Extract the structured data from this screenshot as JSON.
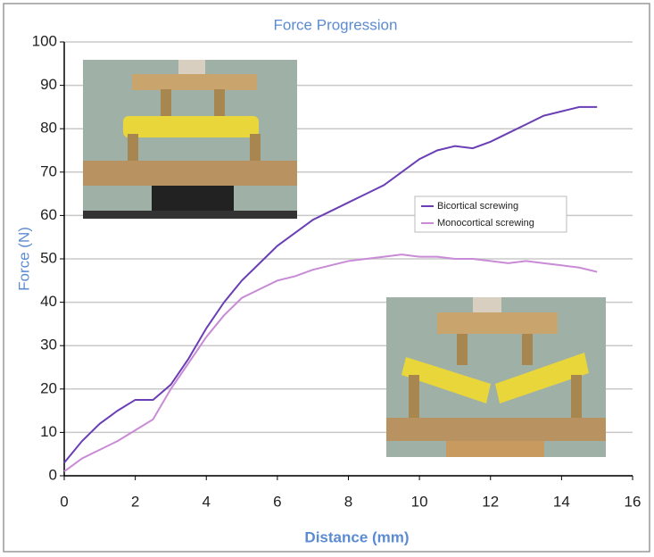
{
  "chart_data": {
    "type": "line",
    "title": "Force Progression",
    "x_label": "Distance (mm)",
    "y_label": "Force (N)",
    "x": [
      0,
      0.5,
      1,
      1.5,
      2,
      2.5,
      3,
      3.5,
      4,
      4.5,
      5,
      5.5,
      6,
      6.5,
      7,
      7.5,
      8,
      8.5,
      9,
      9.5,
      10,
      10.5,
      11,
      11.5,
      12,
      12.5,
      13,
      13.5,
      14,
      14.5,
      15
    ],
    "series": [
      {
        "name": "Bicortical screwing",
        "color": "#6a3fb5",
        "values": [
          3,
          8,
          12,
          15,
          17.5,
          17.5,
          21,
          27,
          34,
          40,
          45,
          49,
          53,
          56,
          59,
          61,
          63,
          65,
          67,
          70,
          73,
          75,
          76,
          75.5,
          77,
          79,
          81,
          83,
          84,
          85,
          85
        ]
      },
      {
        "name": "Monocortical screwing",
        "color": "#c98ad6",
        "values": [
          1,
          4,
          6,
          8,
          10.5,
          13,
          20,
          26,
          32,
          37,
          41,
          43,
          45,
          46,
          47.5,
          48.5,
          49.5,
          50,
          50.5,
          51,
          50.5,
          50.5,
          50,
          50,
          49.5,
          49,
          49.5,
          49,
          48.5,
          48,
          47
        ]
      }
    ],
    "xlim": [
      0,
      16
    ],
    "xticks": [
      0,
      2,
      4,
      6,
      8,
      10,
      12,
      14,
      16
    ],
    "ylim": [
      0,
      100
    ],
    "yticks": [
      0,
      10,
      20,
      30,
      40,
      50,
      60,
      70,
      80,
      90,
      100
    ],
    "grid": true
  }
}
